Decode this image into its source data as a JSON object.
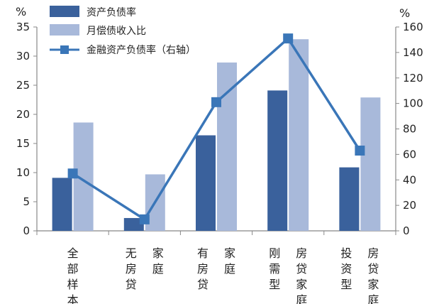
{
  "chart_data": {
    "type": "bar",
    "categories": [
      {
        "id": "all",
        "cols": [
          [
            "全",
            "部",
            "样",
            "本"
          ]
        ]
      },
      {
        "id": "no_mortgage",
        "cols": [
          [
            "无",
            "房",
            "贷"
          ],
          [
            "家",
            "庭"
          ]
        ]
      },
      {
        "id": "has_mortgage",
        "cols": [
          [
            "有",
            "房",
            "贷"
          ],
          [
            "家",
            "庭"
          ]
        ]
      },
      {
        "id": "rigid_demand",
        "cols": [
          [
            "刚",
            "需",
            "型"
          ],
          [
            "房",
            "贷",
            "家",
            "庭"
          ]
        ]
      },
      {
        "id": "investment",
        "cols": [
          [
            "投",
            "资",
            "型"
          ],
          [
            "房",
            "贷",
            "家",
            "庭"
          ]
        ]
      }
    ],
    "series": [
      {
        "name": "资产负债率",
        "type": "bar",
        "axis": "left",
        "color": "#3a619c",
        "values": [
          9.1,
          2.2,
          16.4,
          24.1,
          10.9
        ]
      },
      {
        "name": "月偿债收入比",
        "type": "bar",
        "axis": "left",
        "color": "#a8b9da",
        "values": [
          18.6,
          9.7,
          28.9,
          32.9,
          22.9
        ]
      },
      {
        "name": "金融资产负债率（右轴）",
        "type": "line",
        "axis": "right",
        "color": "#3a76b8",
        "values": [
          45,
          9,
          101,
          151,
          63
        ]
      }
    ],
    "y_left": {
      "unit": "%",
      "range": [
        0,
        35
      ],
      "ticks": [
        "0",
        "5",
        "10",
        "15",
        "20",
        "25",
        "30",
        "35"
      ]
    },
    "y_right": {
      "unit": "%",
      "range": [
        0,
        160
      ],
      "ticks": [
        "0",
        "20",
        "40",
        "60",
        "80",
        "100",
        "120",
        "140",
        "160"
      ]
    },
    "legend_placement": "top-left",
    "grid": false
  }
}
